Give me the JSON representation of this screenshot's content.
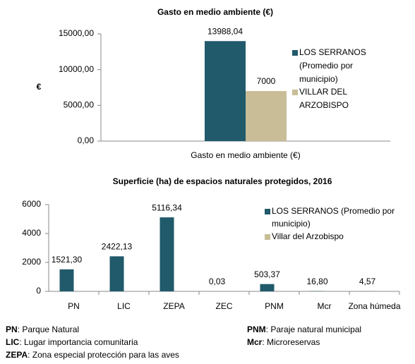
{
  "chart_data": [
    {
      "type": "bar",
      "title": "Gasto  en medio ambiente (€)",
      "ylabel": "€",
      "categories": [
        "Gasto  en medio ambiente (€)"
      ],
      "series": [
        {
          "name": "LOS SERRANOS (Promedio por municipio)",
          "color": "#215a6a",
          "values": [
            13988.04
          ],
          "value_labels": [
            "13988,04"
          ]
        },
        {
          "name": "VILLAR DEL ARZOBISPO",
          "color": "#c8bd96",
          "values": [
            7000
          ]
        }
      ],
      "ylim": [
        0,
        15000
      ],
      "yticks": [
        {
          "value": 0,
          "label": "0,00"
        },
        {
          "value": 5000,
          "label": "5000,00"
        },
        {
          "value": 10000,
          "label": "10000,00"
        },
        {
          "value": 15000,
          "label": "15000,00"
        }
      ],
      "grid": false,
      "legend": "right"
    },
    {
      "type": "bar",
      "title": "Superficie (ha) de espacios naturales protegidos, 2016",
      "categories": [
        "PN",
        "LIC",
        "ZEPA",
        "ZEC",
        "PNM",
        "Mcr",
        "Zona húmeda"
      ],
      "series": [
        {
          "name": "LOS SERRANOS (Promedio por municipio)",
          "color": "#215a6a",
          "values": [
            1521.3,
            2422.13,
            5116.34,
            0.03,
            503.37,
            16.8,
            4.57
          ],
          "value_labels": [
            "1521,30",
            "2422,13",
            "5116,34",
            "0,03",
            "503,37",
            "16,80",
            "4,57"
          ]
        },
        {
          "name": "Villar del Arzobispo",
          "color": "#c8bd96",
          "values": [
            null,
            null,
            null,
            null,
            null,
            null,
            null
          ]
        }
      ],
      "ylim": [
        0,
        6000
      ],
      "yticks": [
        0,
        2000,
        4000,
        6000
      ],
      "grid": false,
      "legend": "top-right"
    }
  ],
  "notes": [
    {
      "abbr": "PN",
      "text": ": Parque Natural"
    },
    {
      "abbr": "LIC",
      "text": ": Lugar importancia comunitaria"
    },
    {
      "abbr": "ZEPA",
      "text": ": Zona especial protección para las aves"
    },
    {
      "abbr": "PNM",
      "text": ": Paraje natural municipal"
    },
    {
      "abbr": "Mcr",
      "text": ": Microreservas"
    }
  ]
}
